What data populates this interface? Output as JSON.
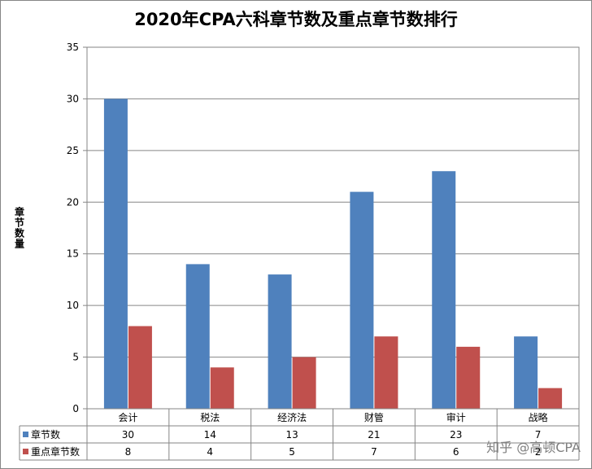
{
  "chart_data": {
    "type": "bar",
    "title": "2020年CPA六科章节数及重点章节数排行",
    "ylabel": "章节数量",
    "xlabel": "",
    "ylim": [
      0,
      35
    ],
    "yticks": [
      0,
      5,
      10,
      15,
      20,
      25,
      30,
      35
    ],
    "categories": [
      "会计",
      "税法",
      "经济法",
      "财管",
      "审计",
      "战略"
    ],
    "series": [
      {
        "name": "章节数",
        "color": "#4F81BD",
        "values": [
          30,
          14,
          13,
          21,
          23,
          7
        ]
      },
      {
        "name": "重点章节数",
        "color": "#C0504D",
        "values": [
          8,
          4,
          5,
          7,
          6,
          2
        ]
      }
    ],
    "grid": true,
    "legend": "data table below chart"
  },
  "watermark": "知乎 @高顿CPA"
}
